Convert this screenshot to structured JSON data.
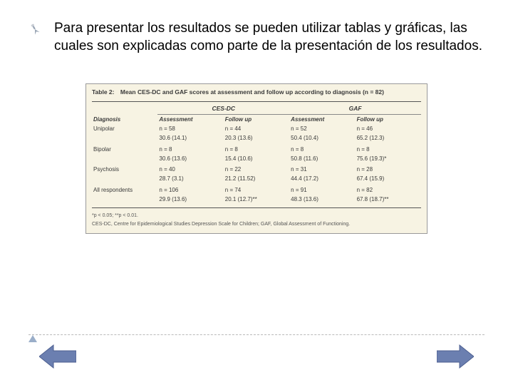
{
  "bullet": {
    "text": "Para presentar los resultados se pueden utilizar tablas y gráficas, las cuales son explicadas como parte de la presentación de los resultados."
  },
  "table": {
    "title_label": "Table 2:",
    "title_text": "Mean CES-DC and GAF scores at assessment and follow up according to diagnosis (n = 82)",
    "col_diag": "Diagnosis",
    "group1": "CES-DC",
    "group2": "GAF",
    "sub_assessment": "Assessment",
    "sub_followup": "Follow up",
    "rows": [
      {
        "label": "Unipolar",
        "c1a": "n = 58",
        "c1b": "30.6 (14.1)",
        "c2a": "n = 44",
        "c2b": "20.3 (13.6)",
        "c3a": "n = 52",
        "c3b": "50.4 (10.4)",
        "c4a": "n = 46",
        "c4b": "65.2 (12.3)"
      },
      {
        "label": "Bipolar",
        "c1a": "n = 8",
        "c1b": "30.6 (13.6)",
        "c2a": "n = 8",
        "c2b": "15.4 (10.6)",
        "c3a": "n = 8",
        "c3b": "50.8 (11.6)",
        "c4a": "n = 8",
        "c4b": "75.6 (19.3)*"
      },
      {
        "label": "Psychosis",
        "c1a": "n = 40",
        "c1b": "28.7 (3.1)",
        "c2a": "n = 22",
        "c2b": "21.2 (11.52)",
        "c3a": "n = 31",
        "c3b": "44.4 (17.2)",
        "c4a": "n = 28",
        "c4b": "67.4 (15.9)"
      },
      {
        "label": "All respondents",
        "c1a": "n = 106",
        "c1b": "29.9 (13.6)",
        "c2a": "n = 74",
        "c2b": "20.1 (12.7)**",
        "c3a": "n = 91",
        "c3b": "48.3 (13.6)",
        "c4a": "n = 82",
        "c4b": "67.8 (18.7)**"
      }
    ],
    "footnote_sig": "*p < 0.05; **p < 0.01.",
    "footnote_abbrev": "CES-DC, Centre for Epidemiological Studies Depression Scale for Children; GAF, Global Assessment of Functioning."
  },
  "colors": {
    "arrow_fill": "#6b7fb0",
    "arrow_stroke": "#4c5f90",
    "pin_body": "#9aa6b5",
    "pin_head": "#c8cdd4"
  }
}
